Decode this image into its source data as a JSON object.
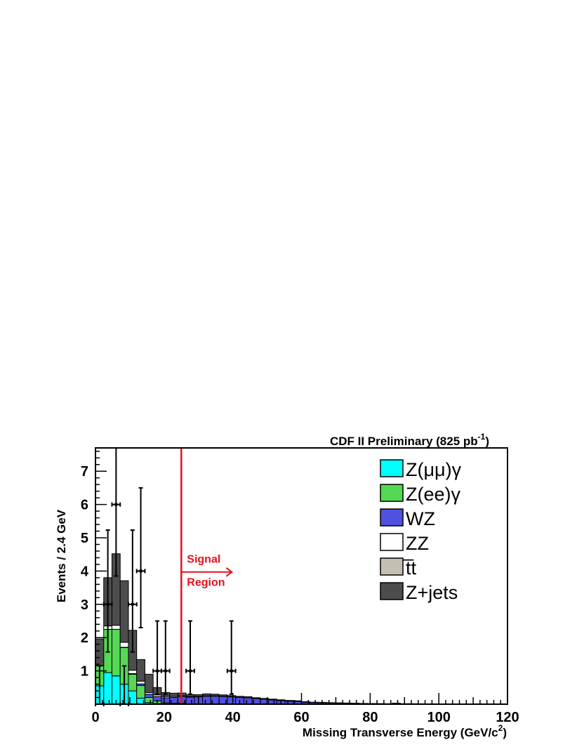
{
  "chart_data": {
    "type": "bar",
    "title": "CDF II Preliminary (825 pb",
    "title_superscript": "-1",
    "title_close": ")",
    "xlabel": "Missing Transverse Energy (GeV/c",
    "xlabel_superscript": "2",
    "xlabel_close": ")",
    "ylabel": "Events / 2.4 GeV",
    "xlim": [
      0,
      120
    ],
    "ylim": [
      0,
      7.7
    ],
    "bin_width": 2.4,
    "xticks": [
      0,
      20,
      40,
      60,
      80,
      100,
      120
    ],
    "xtick_labels": [
      "0",
      "20",
      "40",
      "60",
      "80",
      "100",
      "120"
    ],
    "yticks": [
      1,
      2,
      3,
      4,
      5,
      6,
      7
    ],
    "ytick_labels": [
      "1",
      "2",
      "3",
      "4",
      "5",
      "6",
      "7"
    ],
    "stacked": true,
    "series": [
      {
        "name": "Z(μμ)γ",
        "color": "#00ffff",
        "values": [
          0.55,
          0.95,
          0.85,
          0.6,
          0.4,
          0.18,
          0.05,
          0.02,
          0.01,
          0.01,
          0.01,
          0,
          0,
          0,
          0,
          0,
          0,
          0,
          0,
          0,
          0,
          0,
          0,
          0,
          0,
          0,
          0,
          0,
          0,
          0,
          0,
          0,
          0,
          0,
          0,
          0,
          0,
          0,
          0,
          0,
          0,
          0,
          0,
          0,
          0,
          0,
          0,
          0,
          0,
          0
        ]
      },
      {
        "name": "Z(ee)γ",
        "color": "#55d955",
        "values": [
          0.6,
          1.3,
          1.4,
          1.1,
          0.5,
          0.38,
          0.15,
          0.08,
          0.03,
          0.02,
          0.02,
          0.01,
          0,
          0,
          0,
          0,
          0,
          0,
          0,
          0,
          0,
          0,
          0,
          0,
          0,
          0,
          0,
          0,
          0,
          0,
          0,
          0,
          0,
          0,
          0,
          0,
          0,
          0,
          0,
          0,
          0,
          0,
          0,
          0,
          0,
          0,
          0,
          0,
          0,
          0
        ]
      },
      {
        "name": "WZ",
        "color": "#5050e0",
        "values": [
          0,
          0,
          0,
          0.01,
          0.02,
          0.05,
          0.1,
          0.13,
          0.15,
          0.17,
          0.2,
          0.2,
          0.22,
          0.24,
          0.24,
          0.23,
          0.22,
          0.2,
          0.19,
          0.17,
          0.15,
          0.13,
          0.11,
          0.09,
          0.08,
          0.06,
          0.05,
          0.045,
          0.035,
          0.03,
          0.025,
          0.02,
          0.018,
          0.015,
          0.012,
          0.01,
          0.01,
          0.01,
          0.01,
          0.008,
          0.006,
          0.005,
          0.004,
          0.004,
          0.003,
          0.003,
          0.002,
          0.002,
          0.002,
          0.002
        ]
      },
      {
        "name": "ZZ",
        "color": "#ffffff",
        "values": [
          0.01,
          0.1,
          0.12,
          0.15,
          0.1,
          0.08,
          0.05,
          0.05,
          0.04,
          0.03,
          0.025,
          0.02,
          0.015,
          0.01,
          0.01,
          0.01,
          0.008,
          0.006,
          0.005,
          0.004,
          0.003,
          0.002,
          0.002,
          0.002,
          0.001,
          0.001,
          0,
          0,
          0,
          0,
          0,
          0,
          0,
          0,
          0,
          0,
          0,
          0,
          0,
          0,
          0,
          0,
          0,
          0,
          0,
          0,
          0,
          0,
          0,
          0
        ]
      },
      {
        "name": "t̅t",
        "color": "#c5bfb3",
        "values": [
          0,
          0,
          0,
          0,
          0,
          0,
          0,
          0,
          0,
          0,
          0,
          0,
          0,
          0,
          0,
          0,
          0,
          0,
          0,
          0,
          0,
          0,
          0,
          0,
          0,
          0,
          0,
          0,
          0,
          0,
          0,
          0,
          0,
          0,
          0,
          0,
          0,
          0,
          0,
          0,
          0,
          0,
          0,
          0,
          0,
          0,
          0,
          0,
          0,
          0
        ]
      },
      {
        "name": "Z+jets",
        "color": "#4d4d4d",
        "values": [
          0.8,
          1.45,
          2.15,
          1.85,
          1.2,
          0.65,
          0.55,
          0.22,
          0.12,
          0.1,
          0.08,
          0.06,
          0.05,
          0.06,
          0.05,
          0.04,
          0.03,
          0.03,
          0.03,
          0.02,
          0.02,
          0.02,
          0.02,
          0.02,
          0.02,
          0.015,
          0.01,
          0.01,
          0.01,
          0.01,
          0.01,
          0.01,
          0.005,
          0.005,
          0.005,
          0.005,
          0.02,
          0.005,
          0.005,
          0.005,
          0.005,
          0.005,
          0.005,
          0.005,
          0.005,
          0.005,
          0.005,
          0.005,
          0.005,
          0.005
        ]
      }
    ],
    "data_points": [
      {
        "x": 1.2,
        "y": 0,
        "x_err": 1.2
      },
      {
        "x": 3.6,
        "y": 3,
        "x_err": 1.2
      },
      {
        "x": 6.0,
        "y": 6,
        "x_err": 1.2
      },
      {
        "x": 8.4,
        "y": 0,
        "x_err": 1.2
      },
      {
        "x": 10.8,
        "y": 3,
        "x_err": 1.2
      },
      {
        "x": 13.2,
        "y": 4,
        "x_err": 1.2
      },
      {
        "x": 18.0,
        "y": 1,
        "x_err": 1.2
      },
      {
        "x": 20.4,
        "y": 1,
        "x_err": 1.2
      },
      {
        "x": 27.6,
        "y": 1,
        "x_err": 1.2
      },
      {
        "x": 39.6,
        "y": 1,
        "x_err": 1.2
      }
    ],
    "signal_cut_x": 25,
    "annotation": {
      "line1": "Signal",
      "line2": "Region"
    },
    "legend_placement": "top-right",
    "grid": false
  }
}
